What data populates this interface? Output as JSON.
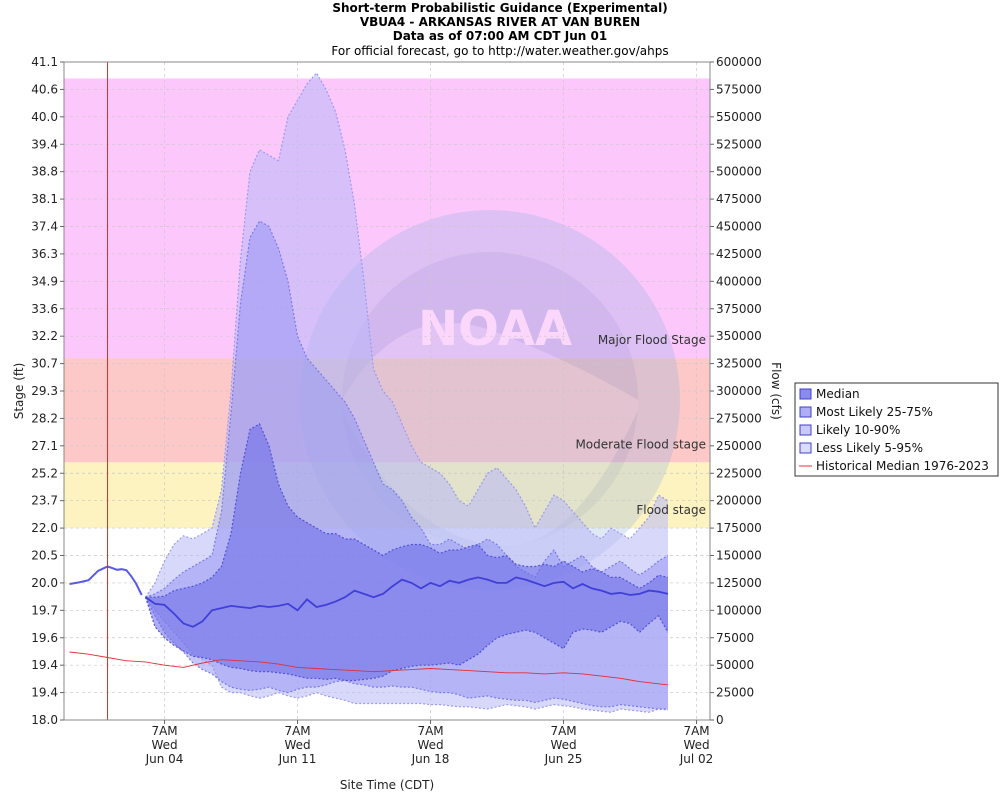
{
  "header": {
    "title": "Short-term Probabilistic Guidance (Experimental)",
    "station": "VBUA4 - ARKANSAS RIVER AT VAN BUREN",
    "data_as_of": "Data as of 07:00 AM CDT Jun 01",
    "official_note": "For official forecast, go to http://water.weather.gov/ahps"
  },
  "chart_data": {
    "type": "area",
    "x_unit": "day",
    "xlim": [
      "2023-05-30",
      "2023-07-03"
    ],
    "xlabel": "Site Time (CDT)",
    "x_ticks": [
      {
        "date": "2023-06-04T07:00",
        "label": [
          "7AM",
          "Wed",
          "Jun 04"
        ]
      },
      {
        "date": "2023-06-11T07:00",
        "label": [
          "7AM",
          "Wed",
          "Jun 11"
        ]
      },
      {
        "date": "2023-06-18T07:00",
        "label": [
          "7AM",
          "Wed",
          "Jun 18"
        ]
      },
      {
        "date": "2023-06-25T07:00",
        "label": [
          "7AM",
          "Wed",
          "Jun 25"
        ]
      },
      {
        "date": "2023-07-02T07:00",
        "label": [
          "7AM",
          "Wed",
          "Jul 02"
        ]
      }
    ],
    "current_time": "2023-06-01T07:00",
    "ylabel_left": "Stage (ft)",
    "ylabel_right": "Flow (cfs)",
    "ylim_flow": [
      0,
      600000
    ],
    "left_ticks": [
      "18.0",
      "19.4",
      "19.4",
      "19.6",
      "19.7",
      "20.0",
      "20.5",
      "22.0",
      "23.7",
      "25.2",
      "27.1",
      "28.2",
      "29.3",
      "30.7",
      "32.2",
      "33.6",
      "34.9",
      "36.3",
      "37.4",
      "38.1",
      "38.8",
      "39.4",
      "40.0",
      "40.6",
      "41.1"
    ],
    "right_ticks": [
      "0",
      "25000",
      "50000",
      "75000",
      "100000",
      "125000",
      "150000",
      "175000",
      "200000",
      "225000",
      "250000",
      "275000",
      "300000",
      "325000",
      "350000",
      "375000",
      "400000",
      "425000",
      "450000",
      "475000",
      "500000",
      "525000",
      "550000",
      "575000",
      "600000"
    ],
    "grid": true,
    "watermark": "NOAA",
    "flood_bands": [
      {
        "name": "Flood stage",
        "flow_from": 175000,
        "flow_to": 235000,
        "color": "#fdf3c0"
      },
      {
        "name": "Moderate Flood stage",
        "flow_from": 235000,
        "flow_to": 330000,
        "color": "#fdc8c8"
      },
      {
        "name": "Major Flood Stage",
        "flow_from": 330000,
        "flow_to": 585000,
        "color": "#fcc8fc"
      }
    ],
    "legend_position": "right",
    "legend": [
      {
        "name": "Median",
        "color": "#5a5ae6"
      },
      {
        "name": "Most Likely 25-75%",
        "color": "#8c8cf0"
      },
      {
        "name": "Likely 10-90%",
        "color": "#b4b4f8"
      },
      {
        "name": "Less Likely 5-95%",
        "color": "#ccccfa"
      },
      {
        "name": "Historical Median 1976-2023",
        "color": "#e8323c"
      }
    ],
    "observed": {
      "x": [
        0.0,
        0.5,
        1.0,
        1.5,
        1.75,
        2.0,
        2.25,
        2.5,
        2.75,
        3.0,
        3.25,
        3.5,
        3.8
      ],
      "flow": [
        124000,
        125500,
        127500,
        136000,
        138000,
        140000,
        138500,
        137000,
        137500,
        136500,
        131000,
        124500,
        114000
      ]
    },
    "series": [
      {
        "name": "Less Likely 5-95%",
        "x": [
          4.0,
          4.5,
          5.0,
          5.5,
          6.0,
          6.5,
          7.0,
          7.5,
          8.0,
          8.5,
          9.0,
          9.5,
          10.0,
          10.5,
          11.0,
          11.5,
          12.0,
          12.5,
          13.0,
          13.5,
          14.0,
          14.5,
          15.0,
          15.5,
          16.0,
          16.5,
          17.0,
          17.5,
          18.0,
          18.5,
          19.0,
          19.5,
          20.0,
          20.5,
          21.0,
          21.5,
          22.0,
          22.5,
          23.0,
          23.5,
          24.0,
          24.5,
          25.0,
          25.5,
          26.0,
          26.5,
          27.0,
          27.5,
          28.0,
          28.5,
          29.0,
          29.5,
          30.0,
          30.5,
          31.0,
          31.5
        ],
        "upper": [
          112000,
          125000,
          145000,
          160000,
          168000,
          165000,
          170000,
          175000,
          210000,
          300000,
          420000,
          500000,
          520000,
          515000,
          510000,
          550000,
          565000,
          580000,
          590000,
          575000,
          555000,
          520000,
          470000,
          400000,
          320000,
          300000,
          290000,
          270000,
          250000,
          235000,
          230000,
          225000,
          215000,
          200000,
          195000,
          210000,
          225000,
          230000,
          220000,
          210000,
          195000,
          175000,
          190000,
          205000,
          200000,
          190000,
          180000,
          170000,
          165000,
          175000,
          170000,
          165000,
          175000,
          185000,
          205000,
          200000
        ],
        "lower": [
          112000,
          100000,
          90000,
          80000,
          70000,
          60000,
          55000,
          50000,
          30000,
          25000,
          25000,
          22000,
          20000,
          22000,
          25000,
          22000,
          20000,
          22000,
          25000,
          22000,
          20000,
          18000,
          15000,
          15000,
          15000,
          15000,
          15000,
          15000,
          15000,
          15000,
          14000,
          14000,
          13000,
          12000,
          12000,
          11000,
          10000,
          12000,
          14000,
          13000,
          12000,
          10000,
          12000,
          14000,
          13000,
          12000,
          10000,
          9000,
          8000,
          7000,
          10000,
          9000,
          8000,
          7000,
          10000,
          9000
        ]
      },
      {
        "name": "Likely 10-90%",
        "x": [
          4.0,
          4.5,
          5.0,
          5.5,
          6.0,
          6.5,
          7.0,
          7.5,
          8.0,
          8.5,
          9.0,
          9.5,
          10.0,
          10.5,
          11.0,
          11.5,
          12.0,
          12.5,
          13.0,
          13.5,
          14.0,
          14.5,
          15.0,
          15.5,
          16.0,
          16.5,
          17.0,
          17.5,
          18.0,
          18.5,
          19.0,
          19.5,
          20.0,
          20.5,
          21.0,
          21.5,
          22.0,
          22.5,
          23.0,
          23.5,
          24.0,
          24.5,
          25.0,
          25.5,
          26.0,
          26.5,
          27.0,
          27.5,
          28.0,
          28.5,
          29.0,
          29.5,
          30.0,
          30.5,
          31.0,
          31.5
        ],
        "upper": [
          112000,
          115000,
          120000,
          128000,
          135000,
          140000,
          145000,
          150000,
          190000,
          280000,
          380000,
          440000,
          455000,
          450000,
          430000,
          400000,
          350000,
          330000,
          320000,
          310000,
          300000,
          290000,
          275000,
          255000,
          235000,
          215000,
          210000,
          200000,
          185000,
          175000,
          160000,
          160000,
          165000,
          160000,
          155000,
          160000,
          165000,
          160000,
          150000,
          140000,
          135000,
          130000,
          145000,
          155000,
          140000,
          145000,
          150000,
          140000,
          135000,
          140000,
          145000,
          138000,
          132000,
          138000,
          145000,
          150000
        ],
        "lower": [
          112000,
          95000,
          80000,
          70000,
          62000,
          52000,
          46000,
          42000,
          35000,
          30000,
          28000,
          27000,
          28000,
          30000,
          27000,
          25000,
          28000,
          30000,
          30000,
          32000,
          35000,
          36000,
          33000,
          32000,
          30000,
          30000,
          31000,
          30000,
          30000,
          28000,
          26000,
          25000,
          25000,
          23000,
          20000,
          21000,
          22000,
          20000,
          19000,
          18000,
          18000,
          16000,
          18000,
          20000,
          19000,
          17000,
          15000,
          13000,
          12000,
          12000,
          14000,
          13000,
          12000,
          11000,
          10000,
          10000
        ]
      },
      {
        "name": "Most Likely 25-75%",
        "x": [
          4.0,
          4.5,
          5.0,
          5.5,
          6.0,
          6.5,
          7.0,
          7.5,
          8.0,
          8.5,
          9.0,
          9.5,
          10.0,
          10.5,
          11.0,
          11.5,
          12.0,
          12.5,
          13.0,
          13.5,
          14.0,
          14.5,
          15.0,
          15.5,
          16.0,
          16.5,
          17.0,
          17.5,
          18.0,
          18.5,
          19.0,
          19.5,
          20.0,
          20.5,
          21.0,
          21.5,
          22.0,
          22.5,
          23.0,
          23.5,
          24.0,
          24.5,
          25.0,
          25.5,
          26.0,
          26.5,
          27.0,
          27.5,
          28.0,
          28.5,
          29.0,
          29.5,
          30.0,
          30.5,
          31.0,
          31.5
        ],
        "upper": [
          112000,
          112000,
          113000,
          118000,
          120000,
          122000,
          125000,
          130000,
          140000,
          170000,
          225000,
          265000,
          270000,
          250000,
          215000,
          195000,
          185000,
          180000,
          175000,
          170000,
          170000,
          165000,
          165000,
          160000,
          155000,
          150000,
          155000,
          158000,
          160000,
          160000,
          157000,
          152000,
          155000,
          155000,
          158000,
          160000,
          150000,
          148000,
          150000,
          142000,
          140000,
          140000,
          142000,
          140000,
          145000,
          140000,
          135000,
          138000,
          135000,
          130000,
          130000,
          125000,
          120000,
          125000,
          132000,
          130000
        ],
        "lower": [
          112000,
          85000,
          75000,
          68000,
          63000,
          58000,
          57000,
          55000,
          51000,
          48000,
          47000,
          45000,
          44000,
          44000,
          43000,
          42000,
          40000,
          38000,
          38000,
          37000,
          38000,
          36000,
          36000,
          37000,
          38000,
          40000,
          45000,
          47000,
          49000,
          50000,
          50000,
          51000,
          52000,
          50000,
          55000,
          60000,
          68000,
          75000,
          78000,
          80000,
          82000,
          80000,
          75000,
          70000,
          65000,
          80000,
          83000,
          82000,
          80000,
          85000,
          90000,
          88000,
          80000,
          88000,
          95000,
          80000
        ]
      },
      {
        "name": "Median",
        "x": [
          4.0,
          4.5,
          5.0,
          5.5,
          6.0,
          6.5,
          7.0,
          7.5,
          8.0,
          8.5,
          9.0,
          9.5,
          10.0,
          10.5,
          11.0,
          11.5,
          12.0,
          12.5,
          13.0,
          13.5,
          14.0,
          14.5,
          15.0,
          15.5,
          16.0,
          16.5,
          17.0,
          17.5,
          18.0,
          18.5,
          19.0,
          19.5,
          20.0,
          20.5,
          21.0,
          21.5,
          22.0,
          22.5,
          23.0,
          23.5,
          24.0,
          24.5,
          25.0,
          25.5,
          26.0,
          26.5,
          27.0,
          27.5,
          28.0,
          28.5,
          29.0,
          29.5,
          30.0,
          30.5,
          31.0,
          31.5
        ],
        "values": [
          112000,
          106000,
          105000,
          97000,
          88000,
          85000,
          90000,
          100000,
          102000,
          104000,
          103000,
          102000,
          104000,
          103000,
          104000,
          106000,
          100000,
          110000,
          103000,
          105000,
          108000,
          112000,
          118000,
          115000,
          112000,
          115000,
          122000,
          128000,
          125000,
          120000,
          125000,
          122000,
          127000,
          125000,
          128000,
          130000,
          128000,
          125000,
          125000,
          130000,
          128000,
          125000,
          122000,
          125000,
          126000,
          120000,
          124000,
          120000,
          118000,
          115000,
          116000,
          114000,
          115000,
          118000,
          117000,
          115000
        ]
      },
      {
        "name": "Historical Median 1976-2023",
        "x": [
          0.0,
          1.0,
          2.0,
          3.0,
          4.0,
          5.0,
          6.0,
          7.0,
          8.0,
          9.0,
          10.0,
          11.0,
          12.0,
          13.0,
          14.0,
          15.0,
          16.0,
          17.0,
          18.0,
          19.0,
          20.0,
          21.0,
          22.0,
          23.0,
          24.0,
          25.0,
          26.0,
          27.0,
          28.0,
          29.0,
          30.0,
          31.0,
          31.5
        ],
        "values": [
          62000,
          60000,
          57000,
          54000,
          53000,
          50000,
          48000,
          52000,
          55000,
          54000,
          53000,
          51000,
          48000,
          47000,
          46000,
          45000,
          44000,
          45000,
          46000,
          47000,
          46000,
          45000,
          44000,
          43000,
          43000,
          42000,
          43000,
          42000,
          40000,
          38000,
          35000,
          33000,
          32000
        ]
      }
    ]
  }
}
